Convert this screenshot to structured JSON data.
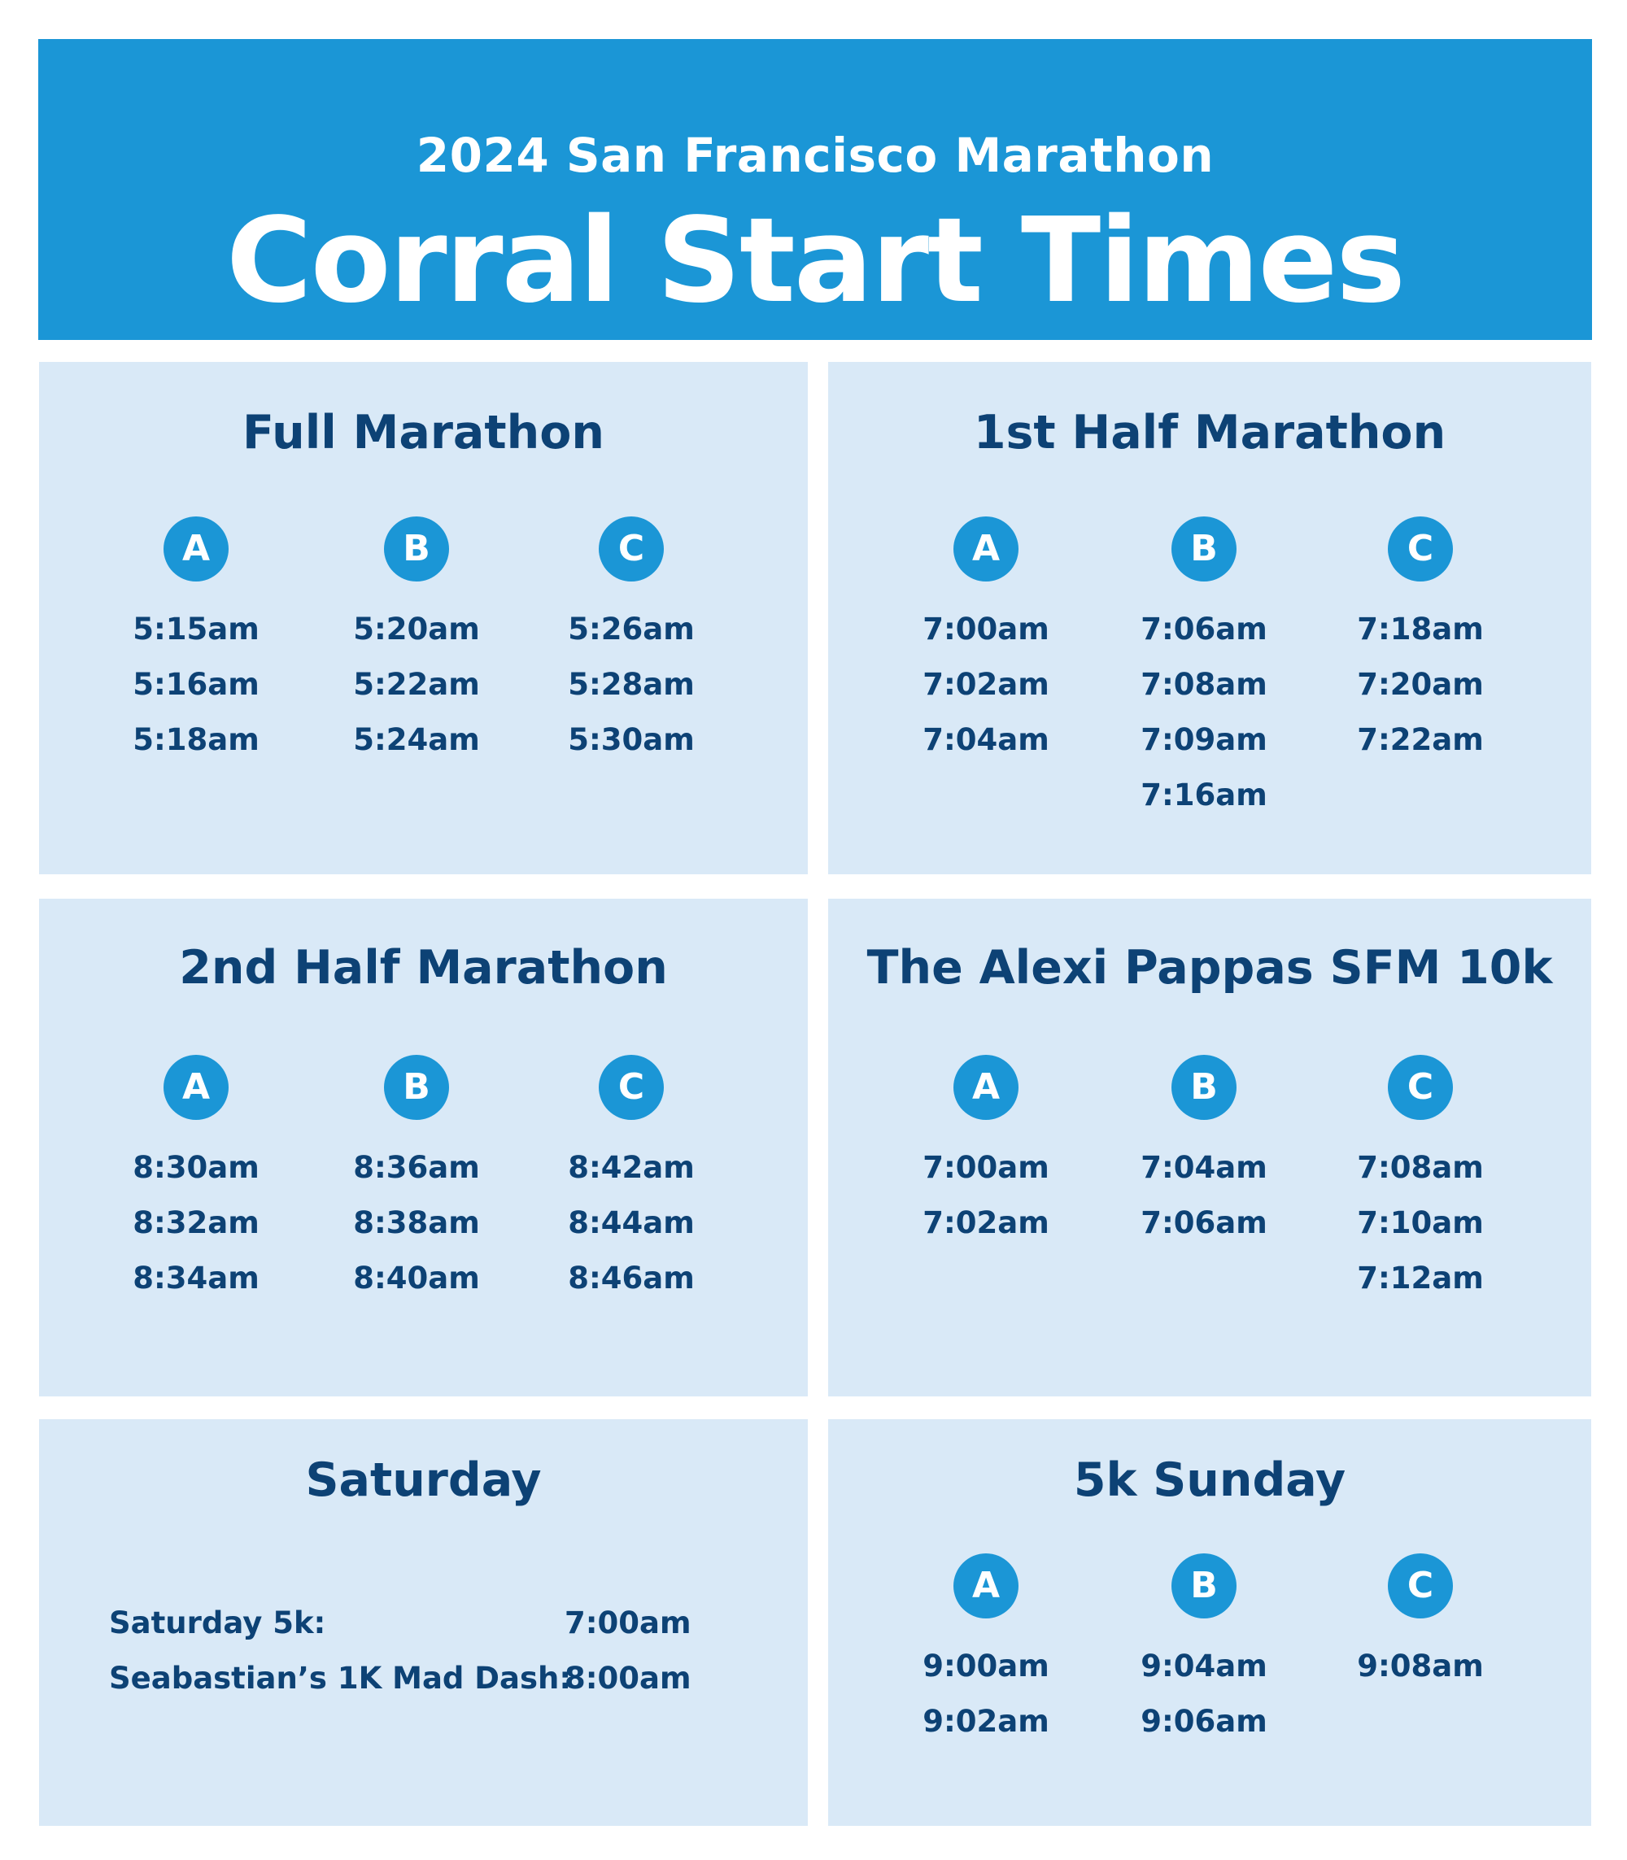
{
  "header": {
    "subtitle": "2024 San Francisco Marathon",
    "title": "Corral Start Times"
  },
  "full_marathon": {
    "title": "Full Marathon",
    "corrals": [
      {
        "label": "A",
        "times": [
          "5:15am",
          "5:16am",
          "5:18am"
        ]
      },
      {
        "label": "B",
        "times": [
          "5:20am",
          "5:22am",
          "5:24am"
        ]
      },
      {
        "label": "C",
        "times": [
          "5:26am",
          "5:28am",
          "5:30am"
        ]
      }
    ]
  },
  "first_half": {
    "title": "1st Half Marathon",
    "corrals": [
      {
        "label": "A",
        "times": [
          "7:00am",
          "7:02am",
          "7:04am"
        ]
      },
      {
        "label": "B",
        "times": [
          "7:06am",
          "7:08am",
          "7:09am",
          "7:16am"
        ]
      },
      {
        "label": "C",
        "times": [
          "7:18am",
          "7:20am",
          "7:22am"
        ]
      }
    ]
  },
  "second_half": {
    "title": "2nd Half Marathon",
    "corrals": [
      {
        "label": "A",
        "times": [
          "8:30am",
          "8:32am",
          "8:34am"
        ]
      },
      {
        "label": "B",
        "times": [
          "8:36am",
          "8:38am",
          "8:40am"
        ]
      },
      {
        "label": "C",
        "times": [
          "8:42am",
          "8:44am",
          "8:46am"
        ]
      }
    ]
  },
  "ten_k": {
    "title": "The Alexi Pappas SFM 10k",
    "corrals": [
      {
        "label": "A",
        "times": [
          "7:00am",
          "7:02am"
        ]
      },
      {
        "label": "B",
        "times": [
          "7:04am",
          "7:06am"
        ]
      },
      {
        "label": "C",
        "times": [
          "7:08am",
          "7:10am",
          "7:12am"
        ]
      }
    ]
  },
  "saturday": {
    "title": "Saturday",
    "events": [
      {
        "label": "Saturday 5k:",
        "time": "7:00am"
      },
      {
        "label": "Seabastian’s 1K Mad Dash:",
        "time": "8:00am"
      }
    ]
  },
  "five_k_sunday": {
    "title": "5k Sunday",
    "corrals": [
      {
        "label": "A",
        "times": [
          "9:00am",
          "9:02am"
        ]
      },
      {
        "label": "B",
        "times": [
          "9:04am",
          "9:06am"
        ]
      },
      {
        "label": "C",
        "times": [
          "9:08am"
        ]
      }
    ]
  },
  "colors": {
    "header_blue": "#1b96d6",
    "panel_bg": "#d9e9f7",
    "text_navy": "#0d4275"
  }
}
